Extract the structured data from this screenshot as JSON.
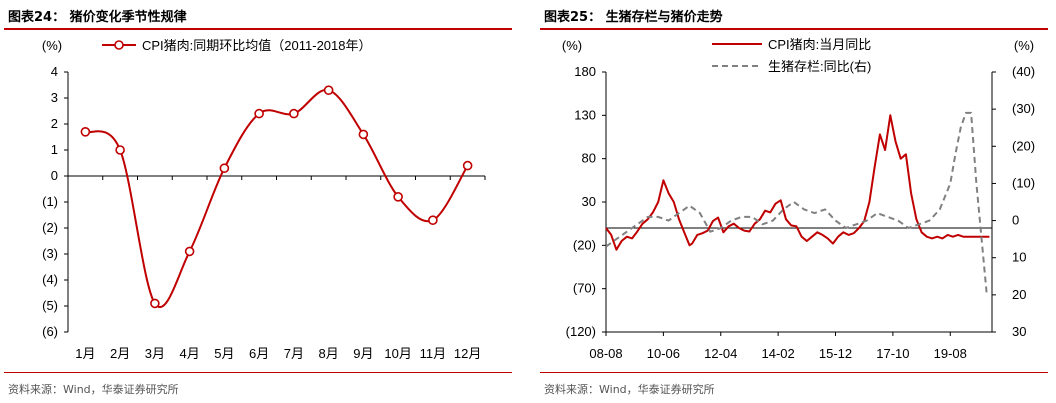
{
  "charts": [
    {
      "figure_title": "图表24：  猪价变化季节性规律",
      "source": "资料来源：Wind，华泰证券研究所",
      "unit_label": "(%)",
      "legend_label": "CPI猪肉:同期环比均值（2011-2018年）",
      "line_color": "#c00000"
    },
    {
      "figure_title": "图表25：  生猪存栏与猪价走势",
      "source": "资料来源：Wind，华泰证券研究所",
      "unit_label_left": "(%)",
      "unit_label_right": "(%)",
      "legend_cpi": "CPI猪肉:当月同比",
      "legend_stock": "生猪存栏:同比(右)",
      "cpi_color": "#c00000",
      "stock_color": "#808080"
    }
  ],
  "chart_data": [
    {
      "type": "line",
      "categories": [
        "1月",
        "2月",
        "3月",
        "4月",
        "5月",
        "6月",
        "7月",
        "8月",
        "9月",
        "10月",
        "11月",
        "12月"
      ],
      "series": [
        {
          "name": "CPI猪肉:同期环比均值（2011-2018年）",
          "values": [
            1.7,
            1.0,
            -4.9,
            -2.9,
            0.3,
            2.4,
            2.4,
            3.3,
            1.6,
            -0.8,
            -1.7,
            0.4
          ]
        }
      ],
      "ylim": [
        -6,
        4
      ],
      "yticks": [
        4,
        3,
        2,
        1,
        0,
        -1,
        -2,
        -3,
        -4,
        -5,
        -6
      ],
      "ytick_labels": [
        "4",
        "3",
        "2",
        "1",
        "0",
        "(1)",
        "(2)",
        "(3)",
        "(4)",
        "(5)",
        "(6)"
      ],
      "legend_position": "top"
    },
    {
      "type": "line",
      "x_tick_labels": [
        "08-08",
        "10-06",
        "12-04",
        "14-02",
        "15-12",
        "17-10",
        "19-08"
      ],
      "x_tick_months": [
        0,
        22,
        44,
        66,
        88,
        110,
        132
      ],
      "ylim_left": [
        -120,
        180
      ],
      "yticks_left": [
        180,
        130,
        80,
        30,
        -20,
        -70,
        -120
      ],
      "ytick_labels_left": [
        "180",
        "130",
        "80",
        "30",
        "(20)",
        "(70)",
        "(120)"
      ],
      "ylim_right": [
        30,
        -40
      ],
      "yticks_right": [
        -40,
        -30,
        -20,
        -10,
        0,
        10,
        20,
        30
      ],
      "ytick_labels_right": [
        "(40)",
        "(30)",
        "(20)",
        "(10)",
        "0",
        "10",
        "20",
        "30"
      ],
      "legend_position": "top",
      "series": [
        {
          "name": "CPI猪肉:当月同比",
          "axis": "left",
          "months": [
            0,
            2,
            4,
            6,
            8,
            10,
            12,
            14,
            16,
            18,
            20,
            22,
            24,
            26,
            28,
            30,
            32,
            33,
            35,
            37,
            39,
            41,
            43,
            45,
            47,
            49,
            51,
            53,
            55,
            57,
            59,
            61,
            63,
            65,
            67,
            69,
            71,
            73,
            75,
            77,
            79,
            81,
            83,
            85,
            87,
            89,
            91,
            93,
            95,
            97,
            99,
            101,
            103,
            105,
            107,
            109,
            111,
            113,
            115,
            117,
            119,
            121,
            123,
            125,
            127,
            129,
            131,
            133,
            135,
            137,
            138,
            139,
            140,
            141,
            142,
            143,
            144,
            145,
            146,
            147
          ],
          "values": [
            0,
            -8,
            -25,
            -15,
            -10,
            -12,
            -4,
            5,
            10,
            18,
            30,
            55,
            40,
            30,
            10,
            -5,
            -20,
            -18,
            -8,
            -6,
            -3,
            8,
            12,
            -5,
            2,
            5,
            0,
            -3,
            -4,
            5,
            10,
            20,
            18,
            28,
            32,
            10,
            3,
            2,
            -10,
            -15,
            -10,
            -5,
            -8,
            -12,
            -18,
            -10,
            -5,
            -8,
            -6,
            0,
            8,
            30,
            70,
            108,
            90,
            130,
            100,
            80,
            85,
            40,
            10,
            -5,
            -10,
            -12,
            -10,
            -12,
            -8,
            -10,
            -8,
            -10,
            -10,
            -10,
            -10,
            -10,
            -10,
            -10,
            -10,
            -10,
            -10,
            -10
          ]
        },
        {
          "name": "生猪存栏:同比(右)",
          "axis": "right",
          "months": [
            0,
            4,
            8,
            12,
            16,
            20,
            24,
            28,
            32,
            36,
            40,
            44,
            48,
            52,
            56,
            60,
            64,
            68,
            72,
            76,
            80,
            84,
            88,
            92,
            96,
            100,
            104,
            108,
            112,
            116,
            120,
            124,
            128,
            132,
            134,
            136,
            138,
            140,
            142,
            144,
            146
          ],
          "values": [
            7,
            5,
            3,
            1,
            -1,
            -1,
            0,
            -2,
            -4,
            -2,
            3,
            2,
            0,
            -1,
            -1,
            1,
            0,
            -3,
            -5,
            -3,
            -2,
            -3,
            0,
            2,
            1,
            0,
            -2,
            -1,
            0,
            2,
            1,
            0,
            -3,
            -10,
            -18,
            -25,
            -29,
            -29,
            -10,
            5,
            20
          ]
        }
      ]
    }
  ]
}
